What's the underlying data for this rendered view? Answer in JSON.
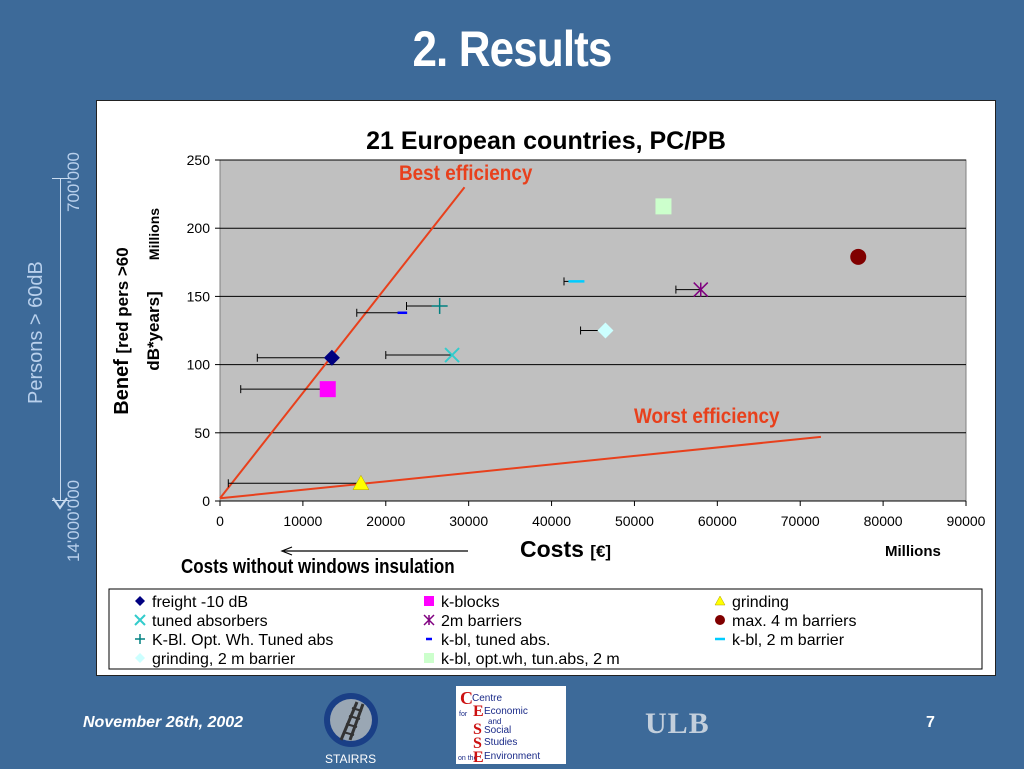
{
  "slide": {
    "title": "2. Results",
    "side_label": "Persons > 60dB",
    "side_top": "700'000",
    "side_bottom": "14'000'000",
    "footer_date": "November 26th, 2002",
    "page_number": "7",
    "ulb_logo": "ULB",
    "stairrs_caption": "STAIRRS",
    "cesse_logo": [
      "Centre",
      "for",
      "Economic",
      "and",
      "Social",
      "Studies",
      "on the",
      "Environment"
    ]
  },
  "chart_data": {
    "type": "scatter",
    "title": "21 European countries, PC/PB",
    "xlabel": "Costs",
    "xlabel_unit": "[€]",
    "x_units": "Millions",
    "ylabel_main": "Benef",
    "ylabel_rest": "[red pers >60 dB*years]",
    "y_units": "Millions",
    "xlim": [
      0,
      90000
    ],
    "ylim": [
      0,
      250
    ],
    "x_ticks": [
      0,
      10000,
      20000,
      30000,
      40000,
      50000,
      60000,
      70000,
      80000,
      90000
    ],
    "y_ticks": [
      0,
      50,
      100,
      150,
      200,
      250
    ],
    "plot_background": "#c0c0c0",
    "grid": true,
    "series": [
      {
        "name": "freight -10 dB",
        "marker": "diamond",
        "color": "#000080",
        "x": 13500,
        "y": 105,
        "err_low_x": 4500
      },
      {
        "name": "k-blocks",
        "marker": "square",
        "color": "#ff00ff",
        "x": 13000,
        "y": 82,
        "err_low_x": 2500
      },
      {
        "name": "grinding",
        "marker": "triangle",
        "color": "#ffff00",
        "x": 17000,
        "y": 13,
        "err_low_x": 1000
      },
      {
        "name": "tuned absorbers",
        "marker": "x",
        "color": "#33cccc",
        "x": 28000,
        "y": 107,
        "err_low_x": 20000
      },
      {
        "name": "2m barriers",
        "marker": "star",
        "color": "#800080",
        "x": 58000,
        "y": 155,
        "err_low_x": 55000
      },
      {
        "name": "max. 4 m barriers",
        "marker": "circle",
        "color": "#800000",
        "x": 77000,
        "y": 179
      },
      {
        "name": "K-Bl. Opt. Wh. Tuned abs",
        "marker": "plus",
        "color": "#008080",
        "x": 26500,
        "y": 143,
        "err_low_x": 22500
      },
      {
        "name": "k-bl, tuned abs.",
        "marker": "dash",
        "color": "#0000ff",
        "x": 22000,
        "y": 138,
        "err_low_x": 16500
      },
      {
        "name": "k-bl, 2 m barrier",
        "marker": "hline",
        "color": "#00ccff",
        "x": 43000,
        "y": 161,
        "err_low_x": 41500
      },
      {
        "name": "grinding, 2 m barrier",
        "marker": "diamond",
        "color": "#ccffff",
        "x": 46500,
        "y": 125,
        "err_low_x": 43500
      },
      {
        "name": "k-bl, opt.wh, tun.abs, 2 m",
        "marker": "square",
        "color": "#ccffcc",
        "x": 53500,
        "y": 216
      }
    ],
    "reference_lines": [
      {
        "label": "Best efficiency",
        "x0": 0,
        "y0": 2,
        "x1": 29500,
        "y1": 230,
        "color": "#e8401c"
      },
      {
        "label": "Worst efficiency",
        "x0": 0,
        "y0": 2,
        "x1": 72500,
        "y1": 47,
        "color": "#e8401c"
      }
    ],
    "annotation": "Costs without windows insulation",
    "legend_position": "bottom"
  }
}
